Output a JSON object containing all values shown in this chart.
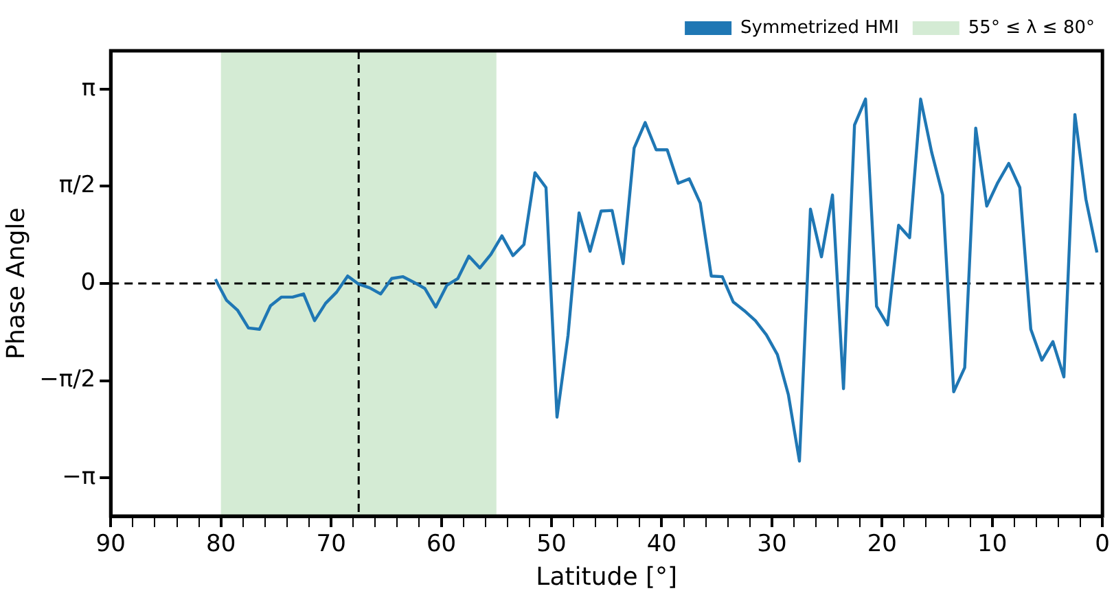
{
  "chart_data": {
    "type": "line",
    "xlabel": "Latitude [°]",
    "ylabel": "Phase Angle",
    "x": [
      80.5,
      79.5,
      78.5,
      77.5,
      76.5,
      75.5,
      74.5,
      73.5,
      72.5,
      71.5,
      70.5,
      69.5,
      68.5,
      67.5,
      66.5,
      65.5,
      64.5,
      63.5,
      62.5,
      61.5,
      60.5,
      59.5,
      58.5,
      57.5,
      56.5,
      55.5,
      54.5,
      53.5,
      52.5,
      51.5,
      50.5,
      49.5,
      48.5,
      47.5,
      46.5,
      45.5,
      44.5,
      43.5,
      42.5,
      41.5,
      40.5,
      39.5,
      38.5,
      37.5,
      36.5,
      35.5,
      34.5,
      33.5,
      32.5,
      31.5,
      30.5,
      29.5,
      28.5,
      27.5,
      26.5,
      25.5,
      24.5,
      23.5,
      22.5,
      21.5,
      20.5,
      19.5,
      18.5,
      17.5,
      16.5,
      15.5,
      14.5,
      13.5,
      12.5,
      11.5,
      10.5,
      9.5,
      8.5,
      7.5,
      6.5,
      5.5,
      4.5,
      3.5,
      2.5,
      1.5,
      0.5
    ],
    "series": [
      {
        "name": "Symmetrized HMI",
        "color": "#1f77b4",
        "values": [
          0.07,
          -0.27,
          -0.43,
          -0.72,
          -0.74,
          -0.36,
          -0.22,
          -0.22,
          -0.17,
          -0.6,
          -0.32,
          -0.14,
          0.12,
          -0.01,
          -0.07,
          -0.17,
          0.08,
          0.11,
          0.02,
          -0.08,
          -0.38,
          -0.03,
          0.08,
          0.44,
          0.25,
          0.47,
          0.77,
          0.45,
          0.63,
          1.79,
          1.55,
          -2.16,
          -0.84,
          1.14,
          0.52,
          1.17,
          1.18,
          0.32,
          2.19,
          2.6,
          2.16,
          2.16,
          1.62,
          1.69,
          1.3,
          0.12,
          0.11,
          -0.3,
          -0.44,
          -0.6,
          -0.83,
          -1.15,
          -1.8,
          -2.87,
          1.2,
          0.43,
          1.43,
          -1.7,
          2.56,
          2.98,
          -0.37,
          -0.67,
          0.94,
          0.74,
          2.98,
          2.12,
          1.43,
          -1.75,
          -1.36,
          2.51,
          1.25,
          1.63,
          1.94,
          1.55,
          -0.74,
          -1.24,
          -0.94,
          -1.51,
          2.73,
          1.36,
          0.5
        ]
      }
    ],
    "xlim": [
      90,
      0
    ],
    "xticks": [
      90,
      {
        "value": 88,
        "label": null
      },
      {
        "value": 86,
        "label": null
      },
      {
        "value": 84,
        "label": null
      },
      {
        "value": 82,
        "label": null
      },
      80,
      {
        "value": 78,
        "label": null
      },
      {
        "value": 76,
        "label": null
      },
      {
        "value": 74,
        "label": null
      },
      {
        "value": 72,
        "label": null
      },
      70,
      {
        "value": 68,
        "label": null
      },
      {
        "value": 66,
        "label": null
      },
      {
        "value": 64,
        "label": null
      },
      {
        "value": 62,
        "label": null
      },
      60,
      {
        "value": 58,
        "label": null
      },
      {
        "value": 56,
        "label": null
      },
      {
        "value": 54,
        "label": null
      },
      {
        "value": 52,
        "label": null
      },
      50,
      {
        "value": 48,
        "label": null
      },
      {
        "value": 46,
        "label": null
      },
      {
        "value": 44,
        "label": null
      },
      {
        "value": 42,
        "label": null
      },
      40,
      {
        "value": 38,
        "label": null
      },
      {
        "value": 36,
        "label": null
      },
      {
        "value": 34,
        "label": null
      },
      {
        "value": 32,
        "label": null
      },
      30,
      {
        "value": 28,
        "label": null
      },
      {
        "value": 26,
        "label": null
      },
      {
        "value": 24,
        "label": null
      },
      {
        "value": 22,
        "label": null
      },
      20,
      {
        "value": 18,
        "label": null
      },
      {
        "value": 16,
        "label": null
      },
      {
        "value": 14,
        "label": null
      },
      {
        "value": 12,
        "label": null
      },
      10,
      {
        "value": 8,
        "label": null
      },
      {
        "value": 6,
        "label": null
      },
      {
        "value": 4,
        "label": null
      },
      {
        "value": 2,
        "label": null
      },
      0
    ],
    "ylim": [
      -3.76,
      3.76
    ],
    "yticks": [
      {
        "value": -3.1416,
        "label": "−π"
      },
      {
        "value": -1.5708,
        "label": "−π/2"
      },
      0,
      {
        "value": 1.5708,
        "label": "π/2"
      },
      {
        "value": 3.1416,
        "label": "π"
      }
    ],
    "ref_lines": [
      {
        "axis": "y",
        "value": 0,
        "line_style": "dashed",
        "color": "#000000"
      },
      {
        "axis": "x",
        "value": 67.5,
        "line_style": "dashed",
        "color": "#000000"
      }
    ],
    "bands": [
      {
        "axis": "x",
        "from": 80,
        "to": 55,
        "label": "55° ≤ λ ≤ 80°",
        "color": "#d4ebd4"
      }
    ],
    "legend": "top right",
    "grid": false,
    "marker": "none",
    "line_style": "solid"
  }
}
